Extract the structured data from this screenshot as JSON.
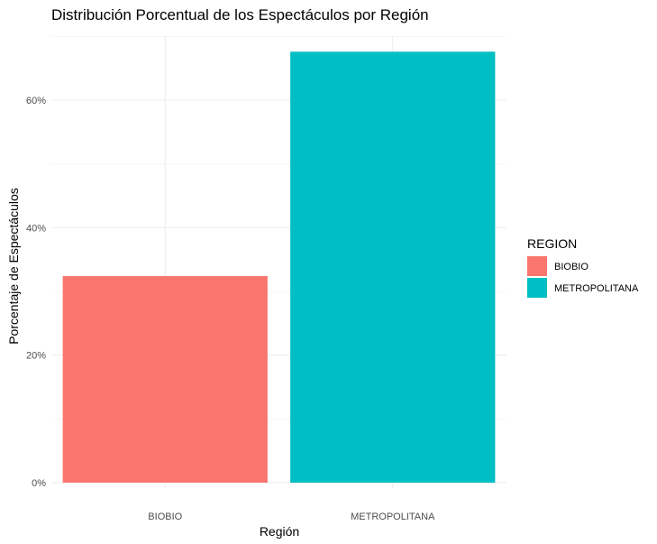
{
  "chart_data": {
    "type": "bar",
    "title": "Distribución Porcentual de los Espectáculos por Región",
    "xlabel": "Región",
    "ylabel": "Porcentaje de Espectáculos",
    "categories": [
      "BIOBIO",
      "METROPOLITANA"
    ],
    "values": [
      32.4,
      67.6
    ],
    "colors": [
      "#F8766D",
      "#00BFC4"
    ],
    "ylim": [
      0,
      70
    ],
    "yticks": [
      0,
      20,
      40,
      60
    ],
    "ytick_labels": [
      "0%",
      "20%",
      "40%",
      "60%"
    ],
    "grid": true,
    "legend": {
      "title": "REGION",
      "position": "right",
      "entries": [
        "BIOBIO",
        "METROPOLITANA"
      ]
    }
  }
}
